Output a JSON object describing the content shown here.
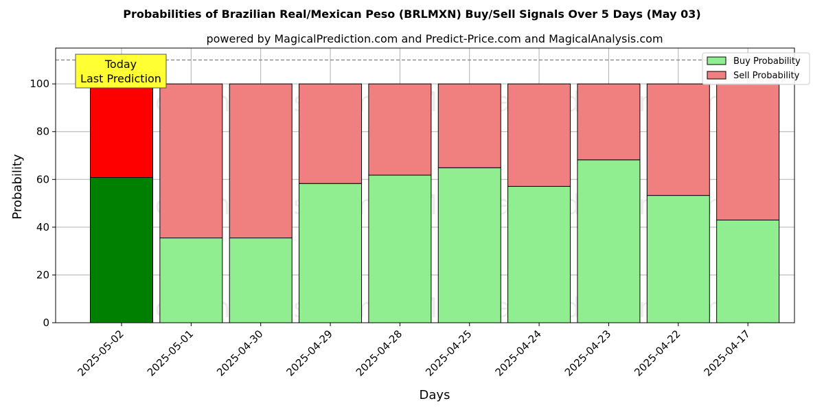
{
  "chart_data": {
    "type": "bar",
    "stacked": true,
    "title": "Probabilities of Brazilian Real/Mexican Peso (BRLMXN) Buy/Sell Signals Over 5 Days (May 03)",
    "subtitle": "powered by MagicalPrediction.com and Predict-Price.com and MagicalAnalysis.com",
    "xlabel": "Days",
    "ylabel": "Probability",
    "ylim": [
      0,
      115
    ],
    "yticks": [
      0,
      20,
      40,
      60,
      80,
      100
    ],
    "reference_line": 110,
    "grid": true,
    "legend_position": "top-right",
    "categories": [
      "2025-05-02",
      "2025-05-01",
      "2025-04-30",
      "2025-04-29",
      "2025-04-28",
      "2025-04-25",
      "2025-04-24",
      "2025-04-23",
      "2025-04-22",
      "2025-04-17"
    ],
    "series": [
      {
        "name": "Buy Probability",
        "color": "#90ee90",
        "highlight_color": "#008000",
        "values": [
          60.8,
          35.5,
          35.5,
          58.3,
          61.8,
          64.9,
          57.1,
          68.2,
          53.3,
          43.0
        ]
      },
      {
        "name": "Sell Probability",
        "color": "#f08080",
        "highlight_color": "#ff0000",
        "values": [
          39.2,
          64.5,
          64.5,
          41.7,
          38.2,
          35.1,
          42.9,
          31.8,
          46.7,
          57.0
        ]
      }
    ],
    "annotation": {
      "lines": [
        "Today",
        "Last Prediction"
      ],
      "color": "#ffff33"
    },
    "watermarks": [
      "MagicalAnalysis.com",
      "MagicalPrediction.com"
    ]
  }
}
